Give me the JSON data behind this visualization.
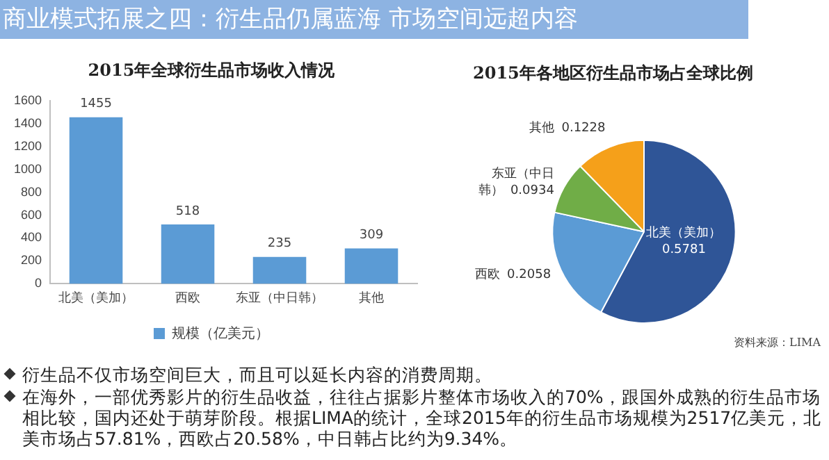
{
  "chart_data": [
    {
      "type": "other",
      "title": "商业模式拓展之四：衍生品仍属蓝海 市场空间远超内容"
    },
    {
      "type": "bar",
      "title": "2015年全球衍生品市场收入情况",
      "categories": [
        "北美（美加）",
        "西欧",
        "东亚（中日韩）",
        "其他"
      ],
      "series": [
        {
          "name": "规模（亿美元）",
          "color": "#5b9bd5",
          "values": [
            1455,
            518,
            235,
            309
          ]
        }
      ],
      "ylim": [
        0,
        1600
      ],
      "yticks": [
        0,
        200,
        400,
        600,
        800,
        1000,
        1200,
        1400,
        1600
      ],
      "data_labels": true,
      "legend": "bottom"
    },
    {
      "type": "pie",
      "title": "2015年各地区衍生品市场占全球比例",
      "categories": [
        "北美（美加）",
        "西欧",
        "东亚（中日韩）",
        "其他"
      ],
      "values": [
        0.5781,
        0.2058,
        0.0934,
        0.1228
      ],
      "colors": [
        "#2f5597",
        "#5b9bd5",
        "#70ad47",
        "#f5a01a"
      ],
      "data_labels": true,
      "annotations": [
        "资料来源：LIMA"
      ]
    },
    {
      "type": "other",
      "annotations": [
        "衍生品不仅市场空间巨大，而且可以延长内容的消费周期。",
        "在海外，一部优秀影片的衍生品收益，往往占据影片整体市场收入的70%，跟国外成熟的衍生品市场相比较，国内还处于萌芽阶段。根据LIMA的统计，全球2015年的衍生品市场规模为2517亿美元，北美市场占57.81%，西欧占20.58%，中日韩占比约为9.34%。"
      ]
    }
  ]
}
